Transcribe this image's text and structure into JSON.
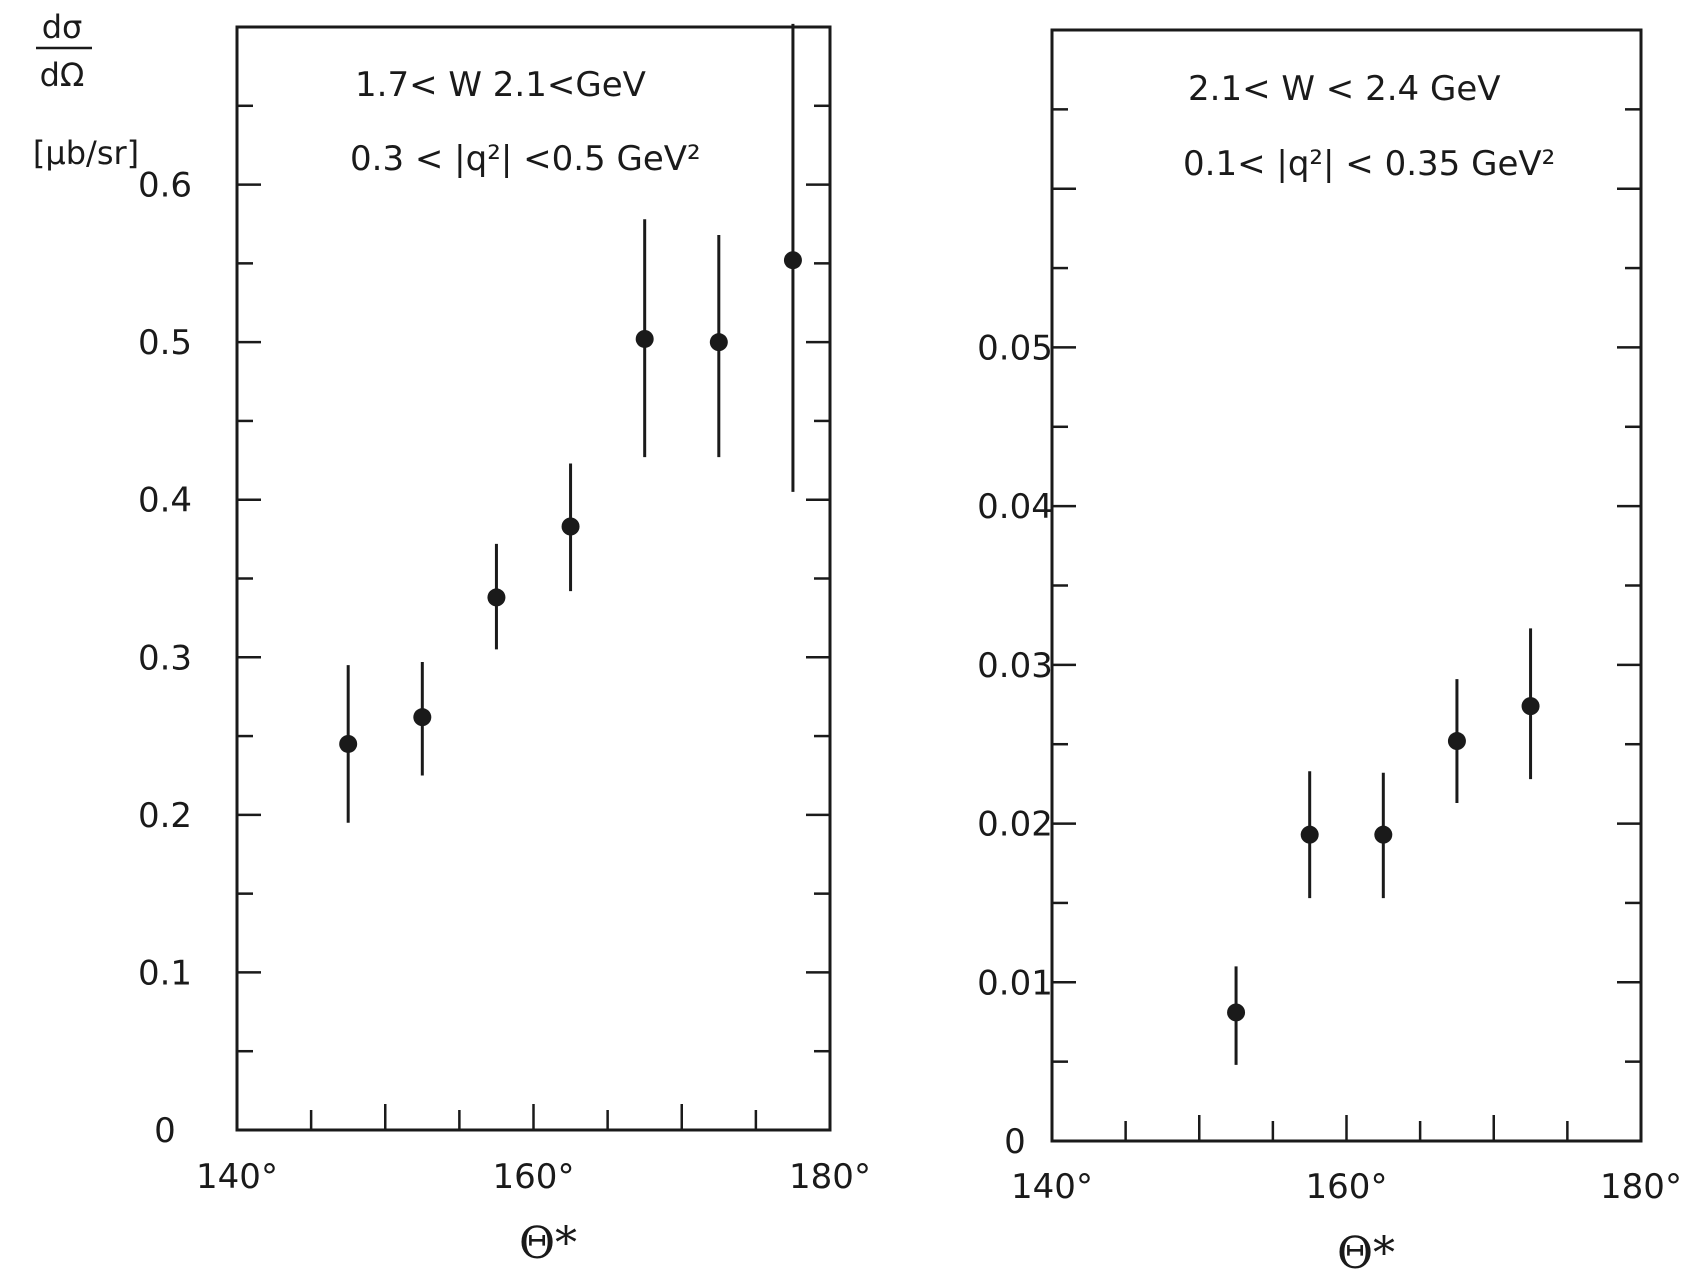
{
  "chart_data": [
    {
      "type": "scatter",
      "ylabel_lines": [
        "dσ",
        "dΩ",
        "[μb/sr]"
      ],
      "annotations": [
        "1.7< W 2.1<GeV",
        "0.3 < |q²| <0.5  GeV²"
      ],
      "xlabel": "Θ*",
      "xlim": [
        140,
        180
      ],
      "ylim": [
        0,
        0.7
      ],
      "x_tick_labels": [
        "140°",
        "160°",
        "180°"
      ],
      "y_tick_labels": [
        "0",
        "0.1",
        "0.2",
        "0.3",
        "0.4",
        "0.5",
        "0.6"
      ],
      "points": [
        {
          "x": 147.5,
          "y": 0.245,
          "err_low": 0.195,
          "err_high": 0.295
        },
        {
          "x": 152.5,
          "y": 0.262,
          "err_low": 0.225,
          "err_high": 0.297
        },
        {
          "x": 157.5,
          "y": 0.338,
          "err_low": 0.305,
          "err_high": 0.372
        },
        {
          "x": 162.5,
          "y": 0.383,
          "err_low": 0.342,
          "err_high": 0.423
        },
        {
          "x": 167.5,
          "y": 0.502,
          "err_low": 0.427,
          "err_high": 0.578
        },
        {
          "x": 172.5,
          "y": 0.5,
          "err_low": 0.427,
          "err_high": 0.568
        },
        {
          "x": 177.5,
          "y": 0.552,
          "err_low": 0.405,
          "err_high": 0.702
        }
      ]
    },
    {
      "type": "scatter",
      "annotations": [
        "2.1< W < 2.4  GeV",
        "0.1< |q²| < 0.35 GeV²"
      ],
      "xlabel": "Θ*",
      "xlim": [
        140,
        180
      ],
      "ylim": [
        0,
        0.07
      ],
      "x_tick_labels": [
        "140°",
        "160°",
        "180°"
      ],
      "y_tick_labels": [
        "0",
        "0.01",
        "0.02",
        "0.03",
        "0.04",
        "0.05"
      ],
      "points": [
        {
          "x": 152.5,
          "y": 0.0081,
          "err_low": 0.0048,
          "err_high": 0.011
        },
        {
          "x": 157.5,
          "y": 0.0193,
          "err_low": 0.0153,
          "err_high": 0.0233
        },
        {
          "x": 162.5,
          "y": 0.0193,
          "err_low": 0.0153,
          "err_high": 0.0232
        },
        {
          "x": 167.5,
          "y": 0.0252,
          "err_low": 0.0213,
          "err_high": 0.0291
        },
        {
          "x": 172.5,
          "y": 0.0274,
          "err_low": 0.0228,
          "err_high": 0.0323
        }
      ]
    }
  ]
}
